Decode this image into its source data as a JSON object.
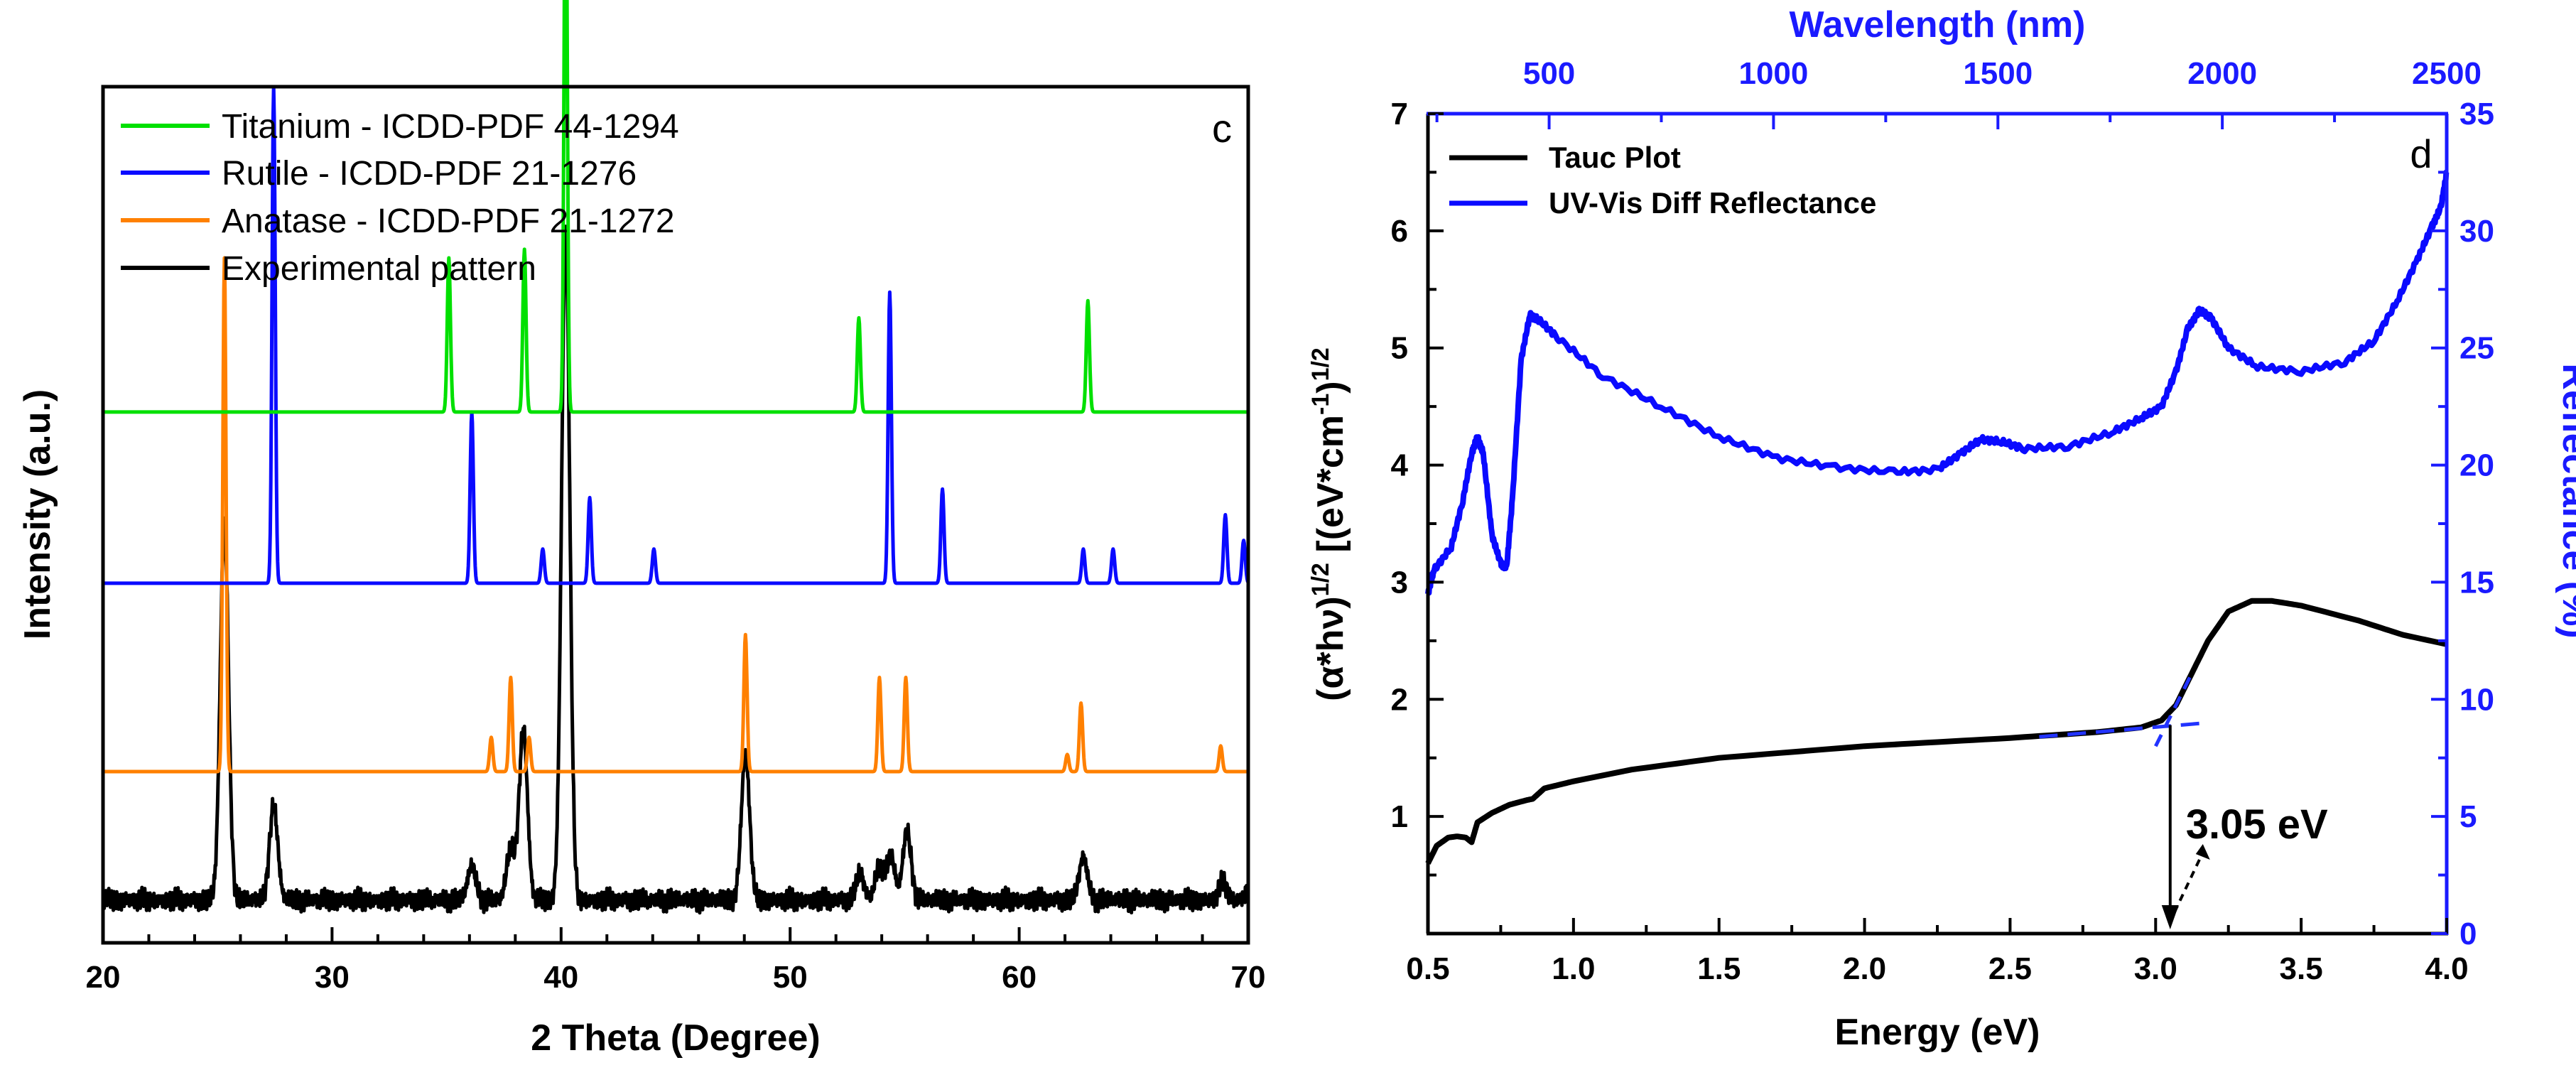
{
  "chart_data": [
    {
      "panel": "c",
      "type": "line",
      "panel_label": "c",
      "xlabel": "2 Theta (Degree)",
      "ylabel": "Intensity (a.u.)",
      "xlim": [
        20,
        70
      ],
      "xticks": [
        "20",
        "30",
        "40",
        "50",
        "60",
        "70"
      ],
      "yticks_shown": false,
      "legend_location": "top-left",
      "series": [
        {
          "name": "Titanium - ICDD-PDF 44-1294",
          "color": "#00e000",
          "baseline": 0.62,
          "peaks": [
            [
              35.1,
              0.18
            ],
            [
              38.4,
              0.19
            ],
            [
              40.2,
              0.68
            ],
            [
              53.0,
              0.11
            ],
            [
              63.0,
              0.13
            ]
          ]
        },
        {
          "name": "Rutile - ICDD-PDF 21-1276",
          "color": "#0a0aff",
          "baseline": 0.42,
          "peaks": [
            [
              27.45,
              0.58
            ],
            [
              36.1,
              0.2
            ],
            [
              39.2,
              0.04
            ],
            [
              41.25,
              0.1
            ],
            [
              44.05,
              0.04
            ],
            [
              54.35,
              0.34
            ],
            [
              56.65,
              0.11
            ],
            [
              62.8,
              0.04
            ],
            [
              64.1,
              0.04
            ],
            [
              69.0,
              0.08
            ],
            [
              69.8,
              0.05
            ]
          ]
        },
        {
          "name": "Anatase - ICDD-PDF 21-1272",
          "color": "#ff8000",
          "baseline": 0.2,
          "peaks": [
            [
              25.3,
              0.6
            ],
            [
              36.95,
              0.04
            ],
            [
              37.8,
              0.11
            ],
            [
              38.6,
              0.04
            ],
            [
              48.05,
              0.16
            ],
            [
              53.9,
              0.11
            ],
            [
              55.05,
              0.11
            ],
            [
              62.1,
              0.02
            ],
            [
              62.7,
              0.08
            ],
            [
              68.8,
              0.03
            ]
          ]
        },
        {
          "name": "Experimental pattern",
          "color": "#000000",
          "baseline": 0.05,
          "peaks": [
            [
              25.3,
              0.44
            ],
            [
              27.45,
              0.11
            ],
            [
              36.1,
              0.04
            ],
            [
              37.8,
              0.06
            ],
            [
              38.35,
              0.2
            ],
            [
              40.2,
              0.78
            ],
            [
              48.05,
              0.17
            ],
            [
              53.05,
              0.03
            ],
            [
              53.9,
              0.04
            ],
            [
              54.4,
              0.05
            ],
            [
              55.1,
              0.08
            ],
            [
              62.8,
              0.05
            ],
            [
              68.9,
              0.02
            ],
            [
              70.0,
              0.01
            ]
          ]
        }
      ]
    },
    {
      "panel": "d",
      "type": "line",
      "panel_label": "d",
      "xlabel": "Energy (eV)",
      "ylabel": "(α*hν)^1/2 [(eV*cm^-1)^1/2",
      "ylabel_parts": {
        "a": "(α*hν)",
        "b": "1/2",
        "c": " [(eV*cm",
        "d": "-1",
        "e": ")",
        "f": "1/2"
      },
      "y2label": "Reflectance (%)",
      "x2label": "Wavelength (nm)",
      "xlim": [
        0.5,
        4.0
      ],
      "ylim": [
        0,
        7
      ],
      "y2lim": [
        0,
        35
      ],
      "x2lim": [
        230,
        2500
      ],
      "xticks": [
        "0.5",
        "1.0",
        "1.5",
        "2.0",
        "2.5",
        "3.0",
        "3.5",
        "4.0"
      ],
      "yticks": [
        "1",
        "2",
        "3",
        "4",
        "5",
        "6",
        "7"
      ],
      "y2ticks": [
        "0",
        "5",
        "10",
        "15",
        "20",
        "25",
        "30",
        "35"
      ],
      "x2ticks": [
        "500",
        "1000",
        "1500",
        "2000",
        "2500"
      ],
      "legend_location": "top-left",
      "annotation": {
        "text": "3.05 eV",
        "x": 3.05
      },
      "series": [
        {
          "name": "Tauc Plot",
          "color": "#000000",
          "axis": "left",
          "points": [
            [
              0.5,
              0.6
            ],
            [
              0.53,
              0.75
            ],
            [
              0.57,
              0.82
            ],
            [
              0.6,
              0.83
            ],
            [
              0.63,
              0.82
            ],
            [
              0.65,
              0.78
            ],
            [
              0.67,
              0.95
            ],
            [
              0.72,
              1.03
            ],
            [
              0.78,
              1.1
            ],
            [
              0.84,
              1.14
            ],
            [
              0.86,
              1.15
            ],
            [
              0.9,
              1.24
            ],
            [
              1.0,
              1.3
            ],
            [
              1.2,
              1.4
            ],
            [
              1.5,
              1.5
            ],
            [
              2.0,
              1.6
            ],
            [
              2.5,
              1.67
            ],
            [
              2.8,
              1.72
            ],
            [
              2.95,
              1.76
            ],
            [
              3.02,
              1.82
            ],
            [
              3.07,
              1.95
            ],
            [
              3.12,
              2.2
            ],
            [
              3.18,
              2.5
            ],
            [
              3.25,
              2.75
            ],
            [
              3.33,
              2.84
            ],
            [
              3.4,
              2.84
            ],
            [
              3.5,
              2.8
            ],
            [
              3.7,
              2.67
            ],
            [
              3.85,
              2.55
            ],
            [
              4.0,
              2.47
            ]
          ]
        },
        {
          "name": "UV-Vis Diff Reflectance",
          "color": "#0a0aff",
          "axis": "right",
          "points": [
            [
              0.5,
              14.5
            ],
            [
              0.52,
              15.5
            ],
            [
              0.58,
              16.5
            ],
            [
              0.62,
              18.5
            ],
            [
              0.65,
              20.5
            ],
            [
              0.67,
              21.2
            ],
            [
              0.69,
              20.5
            ],
            [
              0.72,
              17.0
            ],
            [
              0.75,
              15.8
            ],
            [
              0.77,
              15.6
            ],
            [
              0.79,
              18.5
            ],
            [
              0.82,
              24.5
            ],
            [
              0.85,
              26.4
            ],
            [
              0.88,
              26.2
            ],
            [
              0.95,
              25.4
            ],
            [
              1.1,
              23.8
            ],
            [
              1.3,
              22.5
            ],
            [
              1.5,
              21.2
            ],
            [
              1.7,
              20.3
            ],
            [
              1.9,
              19.9
            ],
            [
              2.1,
              19.7
            ],
            [
              2.25,
              19.8
            ],
            [
              2.33,
              20.5
            ],
            [
              2.4,
              21.1
            ],
            [
              2.47,
              21.0
            ],
            [
              2.55,
              20.7
            ],
            [
              2.7,
              20.8
            ],
            [
              2.85,
              21.4
            ],
            [
              2.95,
              22.0
            ],
            [
              3.02,
              22.5
            ],
            [
              3.07,
              24.0
            ],
            [
              3.11,
              25.8
            ],
            [
              3.15,
              26.6
            ],
            [
              3.19,
              26.3
            ],
            [
              3.25,
              25.0
            ],
            [
              3.35,
              24.2
            ],
            [
              3.5,
              24.0
            ],
            [
              3.65,
              24.4
            ],
            [
              3.75,
              25.3
            ],
            [
              3.83,
              27.0
            ],
            [
              3.9,
              28.8
            ],
            [
              3.95,
              30.2
            ],
            [
              3.98,
              31.0
            ],
            [
              4.0,
              32.5
            ]
          ]
        }
      ]
    }
  ]
}
